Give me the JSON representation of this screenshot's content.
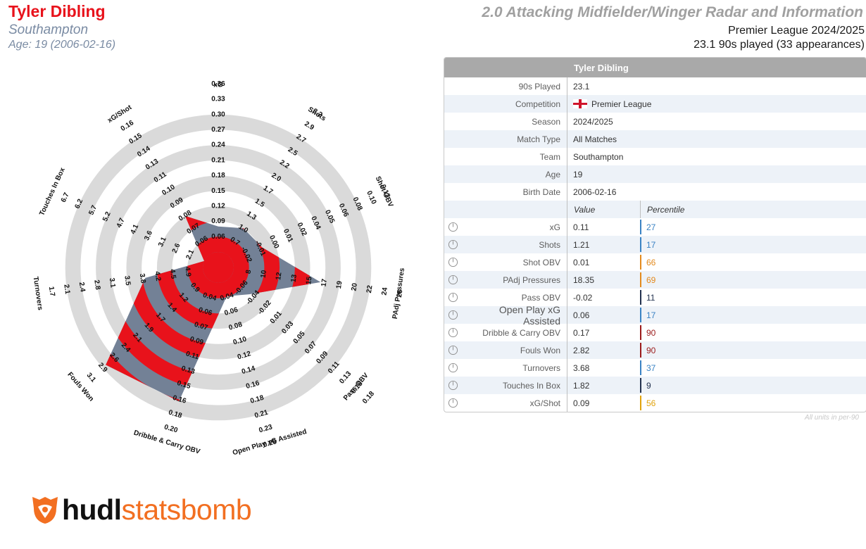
{
  "header": {
    "player": "Tyler Dibling",
    "team": "Southampton",
    "age_line": "Age: 19 (2006-02-16)",
    "report_title": "2.0 Attacking Midfielder/Winger Radar and Information",
    "league_season": "Premier League 2024/2025",
    "played": "23.1 90s played (33 appearances)"
  },
  "colors": {
    "accent_red": "#e8121b",
    "poly_grey": "#738196",
    "ring_grey": "#dadada",
    "brand_orange": "#f26f21",
    "pct_blue": "#3a83c4",
    "pct_navy": "#23324f",
    "pct_orange": "#e38a1e",
    "pct_darkred": "#9b1b1b",
    "pct_gold": "#e0a20c"
  },
  "table": {
    "title": "Tyler Dibling",
    "info": [
      {
        "label": "90s Played",
        "value": "23.1"
      },
      {
        "label": "Competition",
        "value": "Premier League",
        "flag": true
      },
      {
        "label": "Season",
        "value": "2024/2025"
      },
      {
        "label": "Match Type",
        "value": "All Matches"
      },
      {
        "label": "Team",
        "value": "Southampton"
      },
      {
        "label": "Age",
        "value": "19"
      },
      {
        "label": "Birth Date",
        "value": "2006-02-16"
      }
    ],
    "value_header": "Value",
    "percentile_header": "Percentile",
    "metrics": [
      {
        "label": "xG",
        "value": "0.11",
        "percentile": "27",
        "color": "#3a83c4"
      },
      {
        "label": "Shots",
        "value": "1.21",
        "percentile": "17",
        "color": "#3a83c4"
      },
      {
        "label": "Shot OBV",
        "value": "0.01",
        "percentile": "66",
        "color": "#e38a1e"
      },
      {
        "label": "PAdj Pressures",
        "value": "18.35",
        "percentile": "69",
        "color": "#e38a1e"
      },
      {
        "label": "Pass OBV",
        "value": "-0.02",
        "percentile": "11",
        "color": "#23324f"
      },
      {
        "label": "Open Play xG Assisted",
        "value": "0.06",
        "percentile": "17",
        "color": "#3a83c4",
        "big": true
      },
      {
        "label": "Dribble & Carry OBV",
        "value": "0.17",
        "percentile": "90",
        "color": "#9b1b1b"
      },
      {
        "label": "Fouls Won",
        "value": "2.82",
        "percentile": "90",
        "color": "#9b1b1b"
      },
      {
        "label": "Turnovers",
        "value": "3.68",
        "percentile": "37",
        "color": "#3a83c4"
      },
      {
        "label": "Touches In Box",
        "value": "1.82",
        "percentile": "9",
        "color": "#23324f"
      },
      {
        "label": "xG/Shot",
        "value": "0.09",
        "percentile": "56",
        "color": "#e0a20c"
      }
    ]
  },
  "units_note": "All units in per-90",
  "logo": {
    "part1": "hudl",
    "part2": "statsbomb"
  },
  "chart_data": {
    "type": "radar",
    "title": "2.0 Attacking Midfielder/Winger Radar and Information",
    "player": "Tyler Dibling",
    "axes": [
      {
        "name": "xG",
        "value": 0.11,
        "ticks": [
          "0.06",
          "0.09",
          "0.12",
          "0.15",
          "0.18",
          "0.21",
          "0.24",
          "0.27",
          "0.30",
          "0.33",
          "0.36"
        ]
      },
      {
        "name": "Shots",
        "value": 1.21,
        "ticks": [
          "0.7",
          "1.0",
          "1.3",
          "1.5",
          "1.7",
          "2.0",
          "2.2",
          "2.5",
          "2.7",
          "2.9",
          "3.2"
        ]
      },
      {
        "name": "Shot OBV",
        "value": 0.01,
        "ticks": [
          "-0.02",
          "-0.01",
          "0.00",
          "0.01",
          "0.02",
          "0.04",
          "0.05",
          "0.06",
          "0.08",
          "0.10",
          "0.12"
        ]
      },
      {
        "name": "PAdj Pressures",
        "value": 18.35,
        "ticks": [
          "8",
          "10",
          "12",
          "13",
          "15",
          "17",
          "19",
          "20",
          "22",
          "24",
          "26"
        ]
      },
      {
        "name": "Pass OBV",
        "value": -0.02,
        "ticks": [
          "-0.06",
          "-0.04",
          "-0.02",
          "0.01",
          "0.03",
          "0.05",
          "0.07",
          "0.09",
          "0.11",
          "0.13",
          "0.15",
          "0.18"
        ]
      },
      {
        "name": "Open Play xG Assisted",
        "value": 0.06,
        "ticks": [
          "0.04",
          "0.06",
          "0.08",
          "0.10",
          "0.12",
          "0.14",
          "0.16",
          "0.18",
          "0.21",
          "0.23",
          "0.25"
        ]
      },
      {
        "name": "Dribble & Carry OBV",
        "value": 0.17,
        "ticks": [
          "0.04",
          "0.06",
          "0.07",
          "0.09",
          "0.11",
          "0.13",
          "0.15",
          "0.16",
          "0.18",
          "0.20"
        ]
      },
      {
        "name": "Fouls Won",
        "value": 2.82,
        "ticks": [
          "0.9",
          "1.2",
          "1.4",
          "1.7",
          "1.9",
          "2.1",
          "2.4",
          "2.6",
          "2.9",
          "3.1"
        ]
      },
      {
        "name": "Turnovers",
        "value": 3.68,
        "ticks": [
          "4.9",
          "4.5",
          "4.2",
          "3.8",
          "3.5",
          "3.1",
          "2.8",
          "2.4",
          "2.1",
          "1.7"
        ]
      },
      {
        "name": "Touches In Box",
        "value": 1.82,
        "ticks": [
          "2.1",
          "2.6",
          "3.1",
          "3.6",
          "4.1",
          "4.7",
          "5.2",
          "5.7",
          "6.2",
          "6.7"
        ]
      },
      {
        "name": "xG/Shot",
        "value": 0.09,
        "ticks": [
          "0.06",
          "0.07",
          "0.08",
          "0.09",
          "0.10",
          "0.11",
          "0.13",
          "0.14",
          "0.15",
          "0.16"
        ]
      }
    ],
    "ring_count": 10,
    "fill_pattern": "alternating red / grey bands"
  }
}
